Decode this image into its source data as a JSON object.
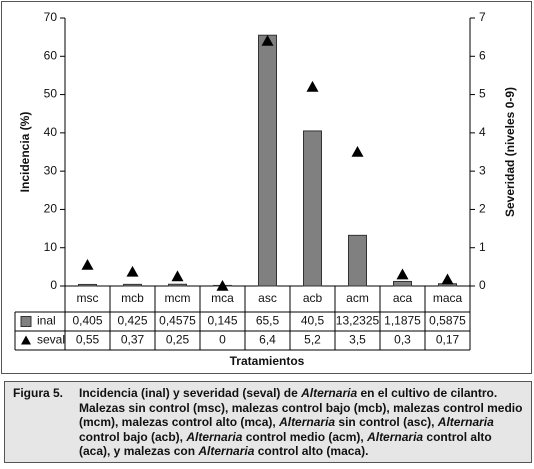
{
  "chart_data": {
    "type": "bar",
    "categories": [
      "msc",
      "mcb",
      "mcm",
      "mca",
      "asc",
      "acb",
      "acm",
      "aca",
      "maca"
    ],
    "series": [
      {
        "name": "inal",
        "type": "bar",
        "color": "#808080",
        "axis": "y",
        "values": [
          0.405,
          0.425,
          0.4575,
          0.145,
          65.5,
          40.5,
          13.2325,
          1.1875,
          0.5875
        ],
        "value_labels": [
          "0,405",
          "0,425",
          "0,4575",
          "0,145",
          "65,5",
          "40,5",
          "13,2325",
          "1,1875",
          "0,5875"
        ]
      },
      {
        "name": "seval",
        "type": "scatter",
        "color": "#000000",
        "axis": "y2",
        "values": [
          0.55,
          0.37,
          0.25,
          0,
          6.4,
          5.2,
          3.5,
          0.3,
          0.17
        ],
        "value_labels": [
          "0,55",
          "0,37",
          "0,25",
          "0",
          "6,4",
          "5,2",
          "3,5",
          "0,3",
          "0,17"
        ]
      }
    ],
    "ylabel": "Incidencia (%)",
    "y2label": "Severidad (niveles 0-9)",
    "xlabel": "Tratamientos",
    "ylim": [
      0,
      70
    ],
    "yticks": [
      0,
      10,
      20,
      30,
      40,
      50,
      60,
      70
    ],
    "y2lim": [
      0,
      7
    ],
    "y2ticks": [
      0,
      1,
      2,
      3,
      4,
      5,
      6,
      7
    ],
    "grid": false
  },
  "caption": {
    "label": "Figura 5.",
    "runs": [
      {
        "text": "Incidencia (inal) y severidad (seval) de ",
        "italic": false
      },
      {
        "text": "Alternaria",
        "italic": true
      },
      {
        "text": " en el cultivo de cilantro. Malezas sin control (msc), malezas control bajo (mcb), malezas control medio (mcm), malezas control alto (mca), ",
        "italic": false
      },
      {
        "text": "Alternaria",
        "italic": true
      },
      {
        "text": " sin control (asc), ",
        "italic": false
      },
      {
        "text": "Alternaria",
        "italic": true
      },
      {
        "text": " control bajo (acb), ",
        "italic": false
      },
      {
        "text": "Alternaria",
        "italic": true
      },
      {
        "text": " control medio (acm), ",
        "italic": false
      },
      {
        "text": "Alternaria",
        "italic": true
      },
      {
        "text": " control alto (aca), y malezas con ",
        "italic": false
      },
      {
        "text": "Alternaria",
        "italic": true
      },
      {
        "text": " control alto (maca).",
        "italic": false
      }
    ]
  }
}
